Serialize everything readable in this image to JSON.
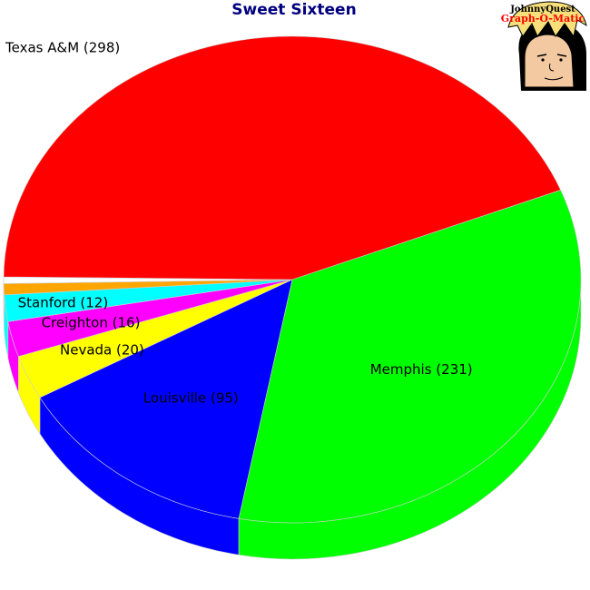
{
  "chart_data": {
    "type": "pie",
    "title": "Sweet Sixteen",
    "slices": [
      {
        "label": "Memphis (231)",
        "value": 231,
        "color": "#00ff00"
      },
      {
        "label": "Louisville (95)",
        "value": 95,
        "color": "#0000ff"
      },
      {
        "label": "Nevada (20)",
        "value": 20,
        "color": "#ffff00"
      },
      {
        "label": "Creighton (16)",
        "value": 16,
        "color": "#ff00ff"
      },
      {
        "label": "Stanford (12)",
        "value": 12,
        "color": "#00ffff"
      },
      {
        "label": "",
        "value": 5,
        "color": "#ffa500"
      },
      {
        "label": "",
        "value": 3,
        "color": "#ffffff"
      },
      {
        "label": "Texas A&M (298)",
        "value": 298,
        "color": "#ff0000"
      }
    ]
  },
  "logo": {
    "line1": "JohnnyQuest",
    "line2": "Graph-O-Matic",
    "icon": "cartoon-boy-face-icon"
  }
}
